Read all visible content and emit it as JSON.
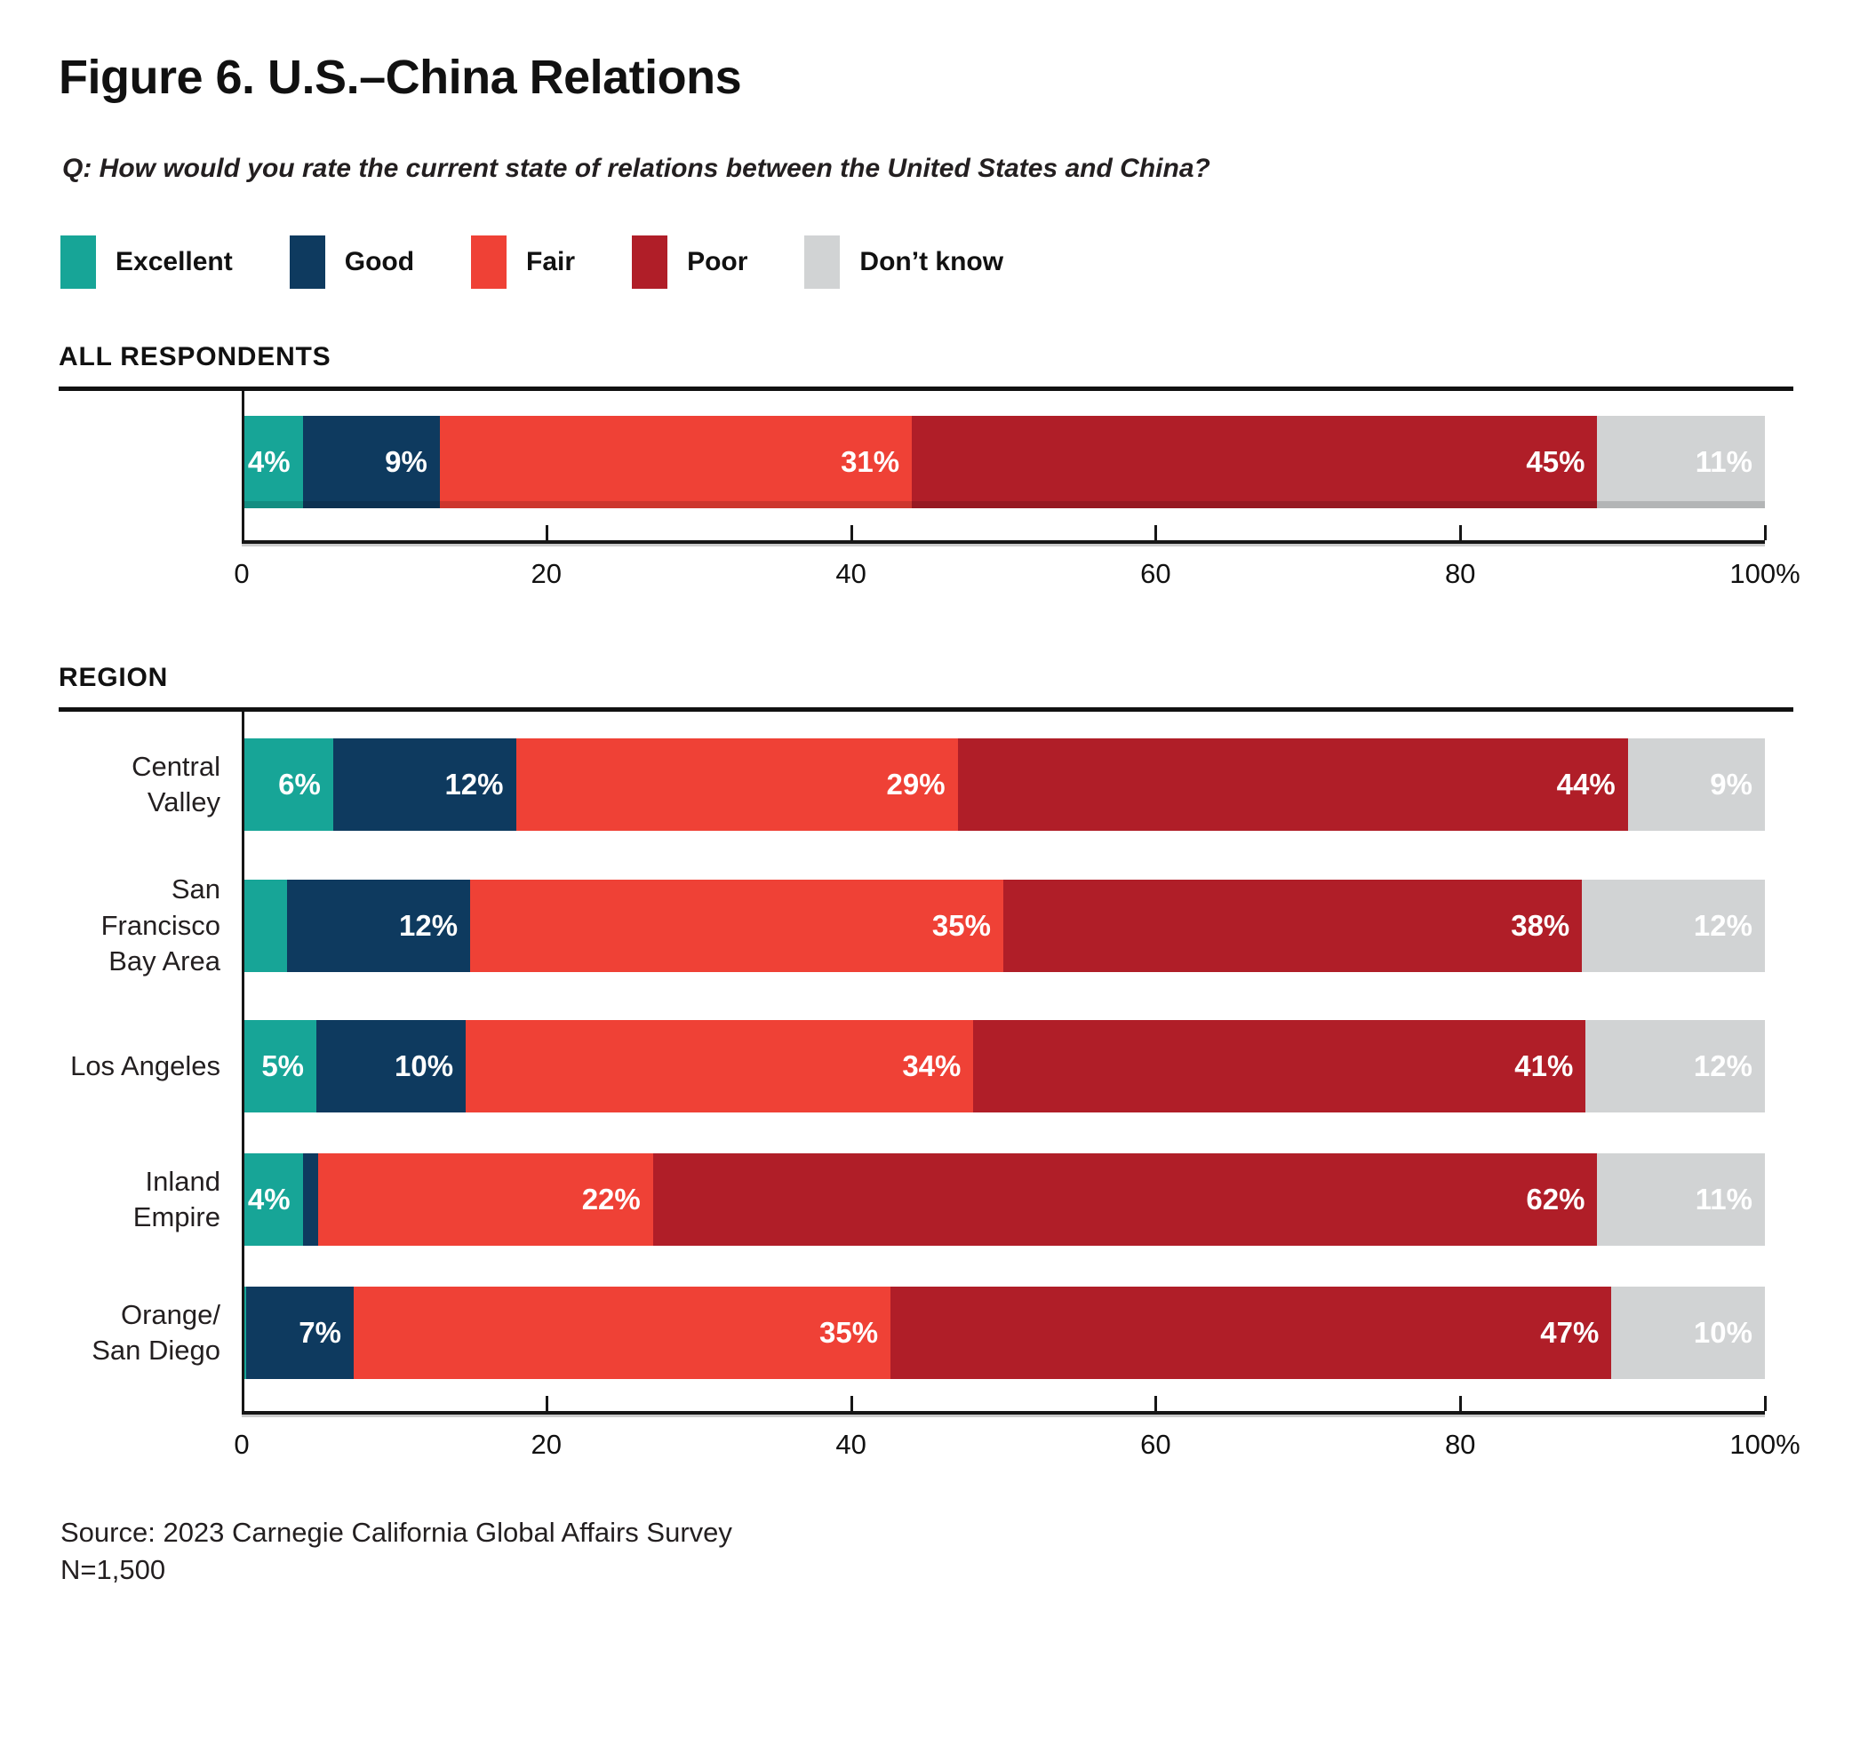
{
  "figure": {
    "title": "Figure 6. U.S.–China Relations",
    "question": "Q: How would you rate the current state of relations between the United States and China?",
    "source_line1": "Source: 2023 Carnegie California Global Affairs Survey",
    "source_line2": "N=1,500"
  },
  "colors": {
    "excellent": "#17A597",
    "good": "#0E3A5F",
    "fair": "#EF4136",
    "poor": "#B01E28",
    "dont_know": "#D1D3D4",
    "text": "#231F20"
  },
  "legend": [
    {
      "label": "Excellent",
      "color_key": "excellent"
    },
    {
      "label": "Good",
      "color_key": "good"
    },
    {
      "label": "Fair",
      "color_key": "fair"
    },
    {
      "label": "Poor",
      "color_key": "poor"
    },
    {
      "label": "Don’t know",
      "color_key": "dont_know"
    }
  ],
  "chart_data": [
    {
      "type": "bar",
      "stacked": true,
      "orientation": "horizontal",
      "section": "ALL RESPONDENTS",
      "series_names": [
        "Excellent",
        "Good",
        "Fair",
        "Poor",
        "Don't know"
      ],
      "xlim": [
        0,
        100
      ],
      "xticks": [
        "0",
        "20",
        "40",
        "60",
        "80",
        "100%"
      ],
      "grid": false,
      "rows": [
        {
          "label": "",
          "values": [
            4,
            9,
            31,
            45,
            11
          ],
          "labels": [
            "4%",
            "9%",
            "31%",
            "45%",
            "11%"
          ]
        }
      ]
    },
    {
      "type": "bar",
      "stacked": true,
      "orientation": "horizontal",
      "section": "REGION",
      "series_names": [
        "Excellent",
        "Good",
        "Fair",
        "Poor",
        "Don't know"
      ],
      "xlim": [
        0,
        100
      ],
      "xticks": [
        "0",
        "20",
        "40",
        "60",
        "80",
        "100%"
      ],
      "grid": false,
      "rows": [
        {
          "label": "Central Valley",
          "values": [
            6,
            12,
            29,
            44,
            9
          ],
          "labels": [
            "6%",
            "12%",
            "29%",
            "44%",
            "9%"
          ]
        },
        {
          "label": "San Francisco\nBay Area",
          "values": [
            3,
            12,
            35,
            38,
            12
          ],
          "labels": [
            "",
            "12%",
            "35%",
            "38%",
            "12%"
          ]
        },
        {
          "label": "Los Angeles",
          "values": [
            5,
            10,
            34,
            41,
            12
          ],
          "labels": [
            "5%",
            "10%",
            "34%",
            "41%",
            "12%"
          ]
        },
        {
          "label": "Inland Empire",
          "values": [
            4,
            1,
            22,
            62,
            11
          ],
          "labels": [
            "4%",
            "",
            "22%",
            "62%",
            "11%"
          ]
        },
        {
          "label": "Orange/\nSan Diego",
          "values": [
            0.3,
            7,
            35,
            47,
            10
          ],
          "labels": [
            "",
            "7%",
            "35%",
            "47%",
            "10%"
          ]
        }
      ]
    }
  ]
}
